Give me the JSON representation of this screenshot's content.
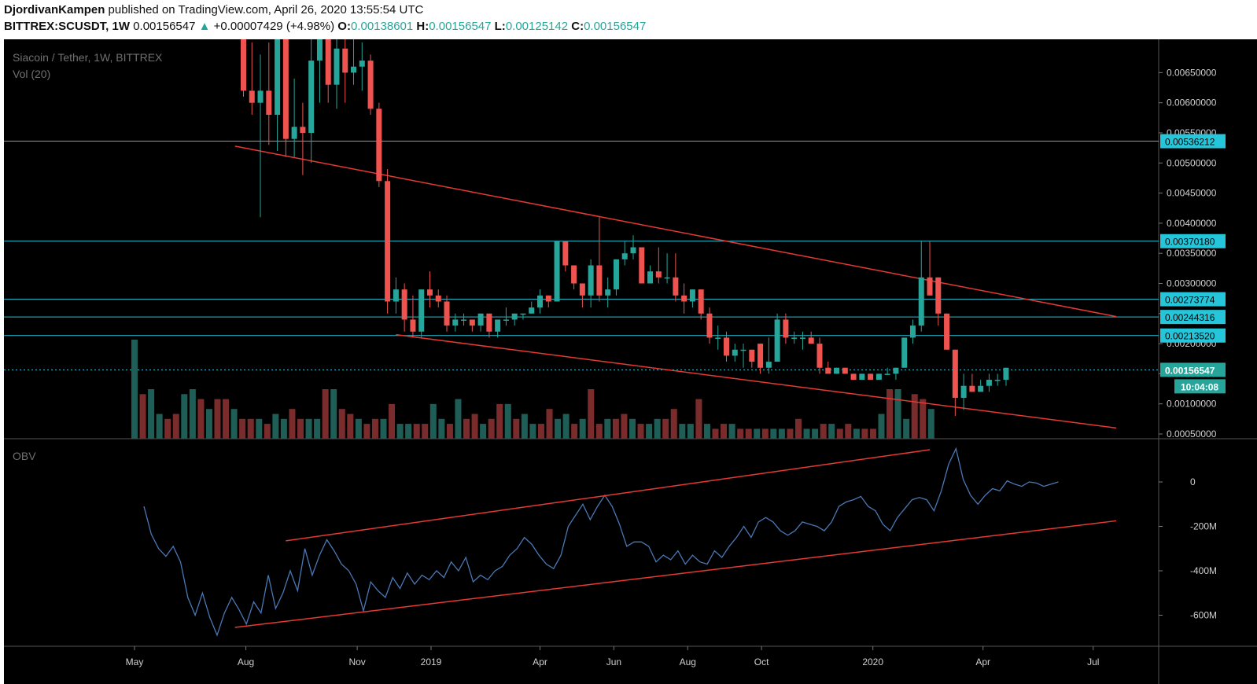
{
  "header": {
    "author": "DjordivanKampen",
    "published_text": "published on TradingView.com, April 26, 2020 13:55:54 UTC",
    "symbol": "BITTREX:SCUSDT,",
    "interval": "1W",
    "last_price": "0.00156547",
    "arrow": "▲",
    "change": "+0.00007429",
    "change_pct": "(+4.98%)",
    "open_label": "O:",
    "open": "0.00138601",
    "high_label": "H:",
    "high": "0.00156547",
    "low_label": "L:",
    "low": "0.00125142",
    "close_label": "C:",
    "close": "0.00156547"
  },
  "legend": {
    "title": "Siacoin / Tether, 1W, BITTREX",
    "volume": "Vol (20)",
    "obv": "OBV"
  },
  "colors": {
    "up": "#26a69a",
    "down": "#ef5350",
    "vol_up": "#1e5e56",
    "vol_down": "#7a2c2c",
    "hline": "#26c6da",
    "trend": "#e53935",
    "obv": "#4a78b5",
    "bg": "#000000"
  },
  "price_axis": {
    "ticks": [
      "0.00650000",
      "0.00600000",
      "0.00550000",
      "0.00500000",
      "0.00450000",
      "0.00400000",
      "0.00350000",
      "0.00300000",
      "0.00250000",
      "0.00200000",
      "0.00150000",
      "0.00100000",
      "0.00050000"
    ]
  },
  "level_labels": [
    "0.00536212",
    "0.00370180",
    "0.00273774",
    "0.00244316",
    "0.00213520"
  ],
  "current_label": "0.00156547",
  "countdown": "10:04:08",
  "obv_axis": {
    "ticks": [
      "0",
      "-200M",
      "-400M",
      "-600M"
    ]
  },
  "time_axis": {
    "labels": [
      "May",
      "Aug",
      "Nov",
      "2019",
      "Apr",
      "Jun",
      "Aug",
      "Oct",
      "2020",
      "Apr",
      "Jul"
    ]
  },
  "chart_data": [
    {
      "type": "candlestick",
      "title": "Siacoin / Tether, 1W, BITTREX",
      "interval": "1W",
      "ylim": [
        0.0003,
        0.0069
      ],
      "horizontal_levels": [
        0.00536212,
        0.0037018,
        0.00273774,
        0.00244316,
        0.0021352,
        0.00156547
      ],
      "trendlines": [
        {
          "from": [
            "2018-07-23",
            0.00528
          ],
          "to": [
            "2020-07-20",
            0.00245
          ]
        },
        {
          "from": [
            "2018-12-03",
            0.00215
          ],
          "to": [
            "2020-07-20",
            0.0006
          ]
        }
      ],
      "candles": [
        [
          "2018-07-30",
          0.0075,
          0.0075,
          0.0061,
          0.0062
        ],
        [
          "2018-08-06",
          0.0062,
          0.007,
          0.0058,
          0.006
        ],
        [
          "2018-08-13",
          0.006,
          0.0068,
          0.0041,
          0.0062
        ],
        [
          "2018-08-20",
          0.0062,
          0.007,
          0.0053,
          0.0058
        ],
        [
          "2018-08-27",
          0.0058,
          0.0075,
          0.0052,
          0.0075
        ],
        [
          "2018-09-03",
          0.0075,
          0.0075,
          0.0051,
          0.0054
        ],
        [
          "2018-09-10",
          0.0054,
          0.0064,
          0.0051,
          0.0056
        ],
        [
          "2018-09-17",
          0.0056,
          0.006,
          0.0048,
          0.0055
        ],
        [
          "2018-09-24",
          0.0055,
          0.0072,
          0.005,
          0.0067
        ],
        [
          "2018-10-01",
          0.0067,
          0.0072,
          0.006,
          0.0072
        ],
        [
          "2018-10-08",
          0.0072,
          0.0075,
          0.006,
          0.0063
        ],
        [
          "2018-10-15",
          0.0063,
          0.0075,
          0.0059,
          0.0069
        ],
        [
          "2018-10-22",
          0.0069,
          0.0075,
          0.006,
          0.0065
        ],
        [
          "2018-10-29",
          0.0065,
          0.0075,
          0.0063,
          0.0066
        ],
        [
          "2018-11-05",
          0.0066,
          0.007,
          0.0062,
          0.0067
        ],
        [
          "2018-11-12",
          0.0067,
          0.0068,
          0.0058,
          0.0059
        ],
        [
          "2018-11-19",
          0.0059,
          0.006,
          0.0046,
          0.0047
        ],
        [
          "2018-11-26",
          0.0047,
          0.0049,
          0.0025,
          0.0027
        ],
        [
          "2018-12-03",
          0.0027,
          0.0031,
          0.0025,
          0.0029
        ],
        [
          "2018-12-10",
          0.0029,
          0.003,
          0.0022,
          0.0024
        ],
        [
          "2018-12-17",
          0.0024,
          0.0028,
          0.0021,
          0.0022
        ],
        [
          "2018-12-24",
          0.0022,
          0.0029,
          0.0021,
          0.0029
        ],
        [
          "2018-12-31",
          0.0029,
          0.0032,
          0.0026,
          0.0028
        ],
        [
          "2019-01-07",
          0.0028,
          0.0029,
          0.0026,
          0.0027
        ],
        [
          "2019-01-14",
          0.0027,
          0.0028,
          0.0022,
          0.0023
        ],
        [
          "2019-01-21",
          0.0023,
          0.0025,
          0.0022,
          0.0024
        ],
        [
          "2019-01-28",
          0.0024,
          0.0025,
          0.0023,
          0.0024
        ],
        [
          "2019-02-04",
          0.0024,
          0.0024,
          0.0022,
          0.0023
        ],
        [
          "2019-02-11",
          0.0023,
          0.0025,
          0.0022,
          0.0025
        ],
        [
          "2019-02-18",
          0.0025,
          0.0025,
          0.0021,
          0.0022
        ],
        [
          "2019-02-25",
          0.0022,
          0.0024,
          0.0021,
          0.0024
        ],
        [
          "2019-03-04",
          0.0024,
          0.0026,
          0.0023,
          0.0024
        ],
        [
          "2019-03-11",
          0.0024,
          0.0025,
          0.0023,
          0.0025
        ],
        [
          "2019-03-18",
          0.0025,
          0.0025,
          0.0024,
          0.0025
        ],
        [
          "2019-03-25",
          0.0025,
          0.0027,
          0.0025,
          0.0026
        ],
        [
          "2019-04-01",
          0.0026,
          0.0029,
          0.0025,
          0.0028
        ],
        [
          "2019-04-08",
          0.0028,
          0.0028,
          0.0026,
          0.0027
        ],
        [
          "2019-04-15",
          0.0027,
          0.0037,
          0.0027,
          0.0037
        ],
        [
          "2019-04-22",
          0.0037,
          0.0037,
          0.0032,
          0.0033
        ],
        [
          "2019-04-29",
          0.0033,
          0.0033,
          0.0029,
          0.003
        ],
        [
          "2019-05-06",
          0.003,
          0.003,
          0.0026,
          0.0028
        ],
        [
          "2019-05-13",
          0.0028,
          0.0034,
          0.0026,
          0.0033
        ],
        [
          "2019-05-20",
          0.0033,
          0.0041,
          0.0027,
          0.0028
        ],
        [
          "2019-05-27",
          0.0028,
          0.0031,
          0.0026,
          0.0029
        ],
        [
          "2019-06-03",
          0.0029,
          0.0034,
          0.0028,
          0.0034
        ],
        [
          "2019-06-10",
          0.0034,
          0.0037,
          0.0033,
          0.0035
        ],
        [
          "2019-06-17",
          0.0035,
          0.0038,
          0.0034,
          0.0036
        ],
        [
          "2019-06-24",
          0.0036,
          0.0036,
          0.003,
          0.003
        ],
        [
          "2019-07-01",
          0.003,
          0.0033,
          0.003,
          0.0032
        ],
        [
          "2019-07-08",
          0.0032,
          0.0036,
          0.003,
          0.0031
        ],
        [
          "2019-07-15",
          0.0031,
          0.0035,
          0.003,
          0.0031
        ],
        [
          "2019-07-22",
          0.0031,
          0.0035,
          0.0027,
          0.0028
        ],
        [
          "2019-07-29",
          0.0028,
          0.003,
          0.0025,
          0.0027
        ],
        [
          "2019-08-05",
          0.0027,
          0.0029,
          0.0026,
          0.0029
        ],
        [
          "2019-08-12",
          0.0029,
          0.0029,
          0.0024,
          0.0025
        ],
        [
          "2019-08-19",
          0.0025,
          0.0026,
          0.002,
          0.0021
        ],
        [
          "2019-08-26",
          0.0021,
          0.0023,
          0.0019,
          0.0021
        ],
        [
          "2019-09-02",
          0.0021,
          0.0022,
          0.0017,
          0.0018
        ],
        [
          "2019-09-09",
          0.0018,
          0.002,
          0.0017,
          0.0019
        ],
        [
          "2019-09-16",
          0.0019,
          0.002,
          0.0016,
          0.0019
        ],
        [
          "2019-09-23",
          0.0019,
          0.0019,
          0.0016,
          0.0017
        ],
        [
          "2019-09-30",
          0.002,
          0.002,
          0.0015,
          0.0016
        ],
        [
          "2019-10-07",
          0.0016,
          0.0021,
          0.0015,
          0.0017
        ],
        [
          "2019-10-14",
          0.0017,
          0.0025,
          0.0017,
          0.0024
        ],
        [
          "2019-10-21",
          0.0024,
          0.0025,
          0.002,
          0.0021
        ],
        [
          "2019-10-28",
          0.0021,
          0.0022,
          0.002,
          0.0021
        ],
        [
          "2019-11-04",
          0.0021,
          0.0022,
          0.0019,
          0.0021
        ],
        [
          "2019-11-11",
          0.0021,
          0.0022,
          0.002,
          0.002
        ],
        [
          "2019-11-18",
          0.002,
          0.0021,
          0.0015,
          0.0016
        ],
        [
          "2019-11-25",
          0.0016,
          0.0017,
          0.0015,
          0.0015
        ],
        [
          "2019-12-02",
          0.0015,
          0.0016,
          0.0015,
          0.0016
        ],
        [
          "2019-12-09",
          0.0016,
          0.0016,
          0.0015,
          0.0015
        ],
        [
          "2019-12-16",
          0.0015,
          0.0015,
          0.0014,
          0.0014
        ],
        [
          "2019-12-23",
          0.0014,
          0.0015,
          0.0014,
          0.0015
        ],
        [
          "2019-12-30",
          0.0015,
          0.0015,
          0.0014,
          0.0014
        ],
        [
          "2020-01-06",
          0.0014,
          0.0015,
          0.0014,
          0.0015
        ],
        [
          "2020-01-13",
          0.0015,
          0.0016,
          0.0015,
          0.0015
        ],
        [
          "2020-01-20",
          0.0015,
          0.0016,
          0.0014,
          0.0016
        ],
        [
          "2020-01-27",
          0.0016,
          0.0021,
          0.0016,
          0.0021
        ],
        [
          "2020-02-03",
          0.0021,
          0.0024,
          0.002,
          0.0023
        ],
        [
          "2020-02-10",
          0.0023,
          0.0037,
          0.0022,
          0.0031
        ],
        [
          "2020-02-17",
          0.0031,
          0.0037,
          0.0028,
          0.0028
        ],
        [
          "2020-02-24",
          0.0031,
          0.0031,
          0.0023,
          0.0025
        ],
        [
          "2020-03-02",
          0.0025,
          0.0025,
          0.0019,
          0.0019
        ],
        [
          "2020-03-09",
          0.0019,
          0.0019,
          0.0008,
          0.0011
        ],
        [
          "2020-03-16",
          0.0011,
          0.0015,
          0.0009,
          0.0013
        ],
        [
          "2020-03-23",
          0.0013,
          0.0015,
          0.0012,
          0.0012
        ],
        [
          "2020-03-30",
          0.0012,
          0.0014,
          0.0012,
          0.0013
        ],
        [
          "2020-04-06",
          0.0013,
          0.0015,
          0.0012,
          0.0014
        ],
        [
          "2020-04-13",
          0.0014,
          0.0015,
          0.0013,
          0.0014
        ],
        [
          "2020-04-20",
          0.0014,
          0.0016,
          0.0013,
          0.0016
        ]
      ]
    },
    {
      "type": "bar",
      "title": "Vol (20)",
      "volume_relative": [
        100,
        45,
        50,
        25,
        20,
        25,
        45,
        50,
        40,
        30,
        40,
        40,
        30,
        20,
        20,
        20,
        15,
        25,
        20,
        30,
        20,
        20,
        20,
        50,
        50,
        30,
        25,
        20,
        15,
        20,
        20,
        35,
        15,
        15,
        15,
        15,
        35,
        20,
        15,
        40,
        20,
        25,
        15,
        20,
        35,
        35,
        20,
        25,
        15,
        15,
        30,
        20,
        25,
        15,
        20,
        50,
        15,
        20,
        20,
        25,
        20,
        15,
        15,
        20,
        20,
        30,
        15,
        15,
        40,
        15,
        10,
        15,
        15,
        10,
        10,
        10,
        10,
        10,
        10,
        10,
        20,
        10,
        10,
        15,
        15,
        10,
        15,
        10,
        10,
        10,
        25,
        50,
        50,
        20,
        45,
        40,
        30
      ]
    },
    {
      "type": "line",
      "title": "OBV",
      "ylim": [
        -750,
        150
      ],
      "ylabel": "",
      "trendlines": [
        {
          "from": [
            "2018-07-23",
            -655
          ],
          "to": [
            "2020-07-20",
            -175
          ]
        },
        {
          "from": [
            "2018-09-03",
            -265
          ],
          "to": [
            "2020-02-17",
            145
          ]
        }
      ],
      "values_M": [
        -110,
        -235,
        -300,
        -335,
        -290,
        -360,
        -520,
        -600,
        -500,
        -610,
        -690,
        -590,
        -520,
        -575,
        -640,
        -540,
        -590,
        -420,
        -570,
        -500,
        -400,
        -490,
        -300,
        -420,
        -330,
        -260,
        -310,
        -370,
        -400,
        -460,
        -580,
        -450,
        -490,
        -520,
        -430,
        -480,
        -410,
        -460,
        -420,
        -440,
        -400,
        -430,
        -360,
        -400,
        -340,
        -450,
        -420,
        -440,
        -400,
        -380,
        -330,
        -300,
        -250,
        -280,
        -330,
        -370,
        -390,
        -330,
        -200,
        -150,
        -100,
        -170,
        -110,
        -60,
        -110,
        -190,
        -290,
        -270,
        -270,
        -290,
        -360,
        -330,
        -350,
        -310,
        -370,
        -330,
        -360,
        -370,
        -310,
        -340,
        -290,
        -250,
        -200,
        -250,
        -180,
        -160,
        -180,
        -220,
        -240,
        -220,
        -180,
        -190,
        -200,
        -220,
        -180,
        -110,
        -90,
        -80,
        -65,
        -110,
        -130,
        -190,
        -220,
        -160,
        -120,
        -80,
        -70,
        -80,
        -130,
        -40,
        80,
        150,
        10,
        -60,
        -100,
        -60,
        -30,
        -40,
        5,
        -10,
        -20,
        0,
        -5,
        -20,
        -10,
        0
      ]
    }
  ]
}
